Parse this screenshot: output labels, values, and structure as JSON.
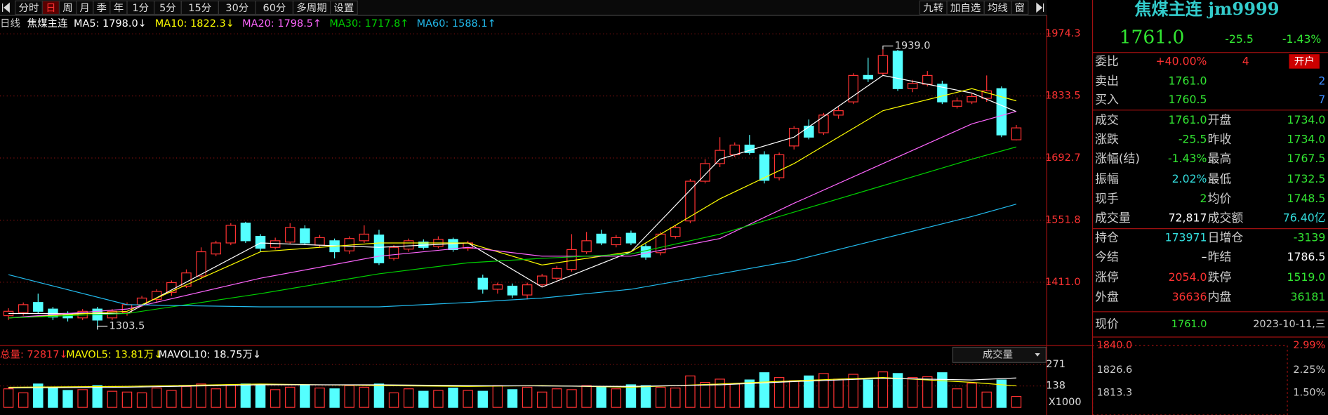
{
  "toolbar": {
    "left": [
      "分时",
      "日",
      "周",
      "月",
      "季",
      "年",
      "1分",
      "5分",
      "15分",
      "30分",
      "60分",
      "多周期",
      "设置"
    ],
    "right": [
      "九转",
      "加自选",
      "均线",
      "窗"
    ]
  },
  "chart_data": [
    {
      "type": "candlestick",
      "period_label": "日线",
      "name": "焦煤主连",
      "open": [
        1335,
        1342,
        1365,
        1350,
        1340,
        1330,
        1350,
        1330,
        1342,
        1360,
        1372,
        1388,
        1402,
        1425,
        1475,
        1500,
        1545,
        1515,
        1490,
        1502,
        1532,
        1495,
        1505,
        1482,
        1505,
        1518,
        1465,
        1486,
        1502,
        1492,
        1508,
        1488,
        1420,
        1395,
        1402,
        1382,
        1405,
        1420,
        1440,
        1480,
        1520,
        1496,
        1522,
        1492,
        1478,
        1515,
        1550,
        1640,
        1680,
        1700,
        1722,
        1700,
        1648,
        1720,
        1765,
        1750,
        1790,
        1820,
        1880,
        1885,
        1935,
        1850,
        1860,
        1860,
        1810,
        1820,
        1828,
        1850,
        1734
      ],
      "close": [
        1345,
        1360,
        1345,
        1332,
        1330,
        1345,
        1325,
        1345,
        1360,
        1375,
        1390,
        1410,
        1432,
        1480,
        1500,
        1540,
        1505,
        1488,
        1505,
        1535,
        1500,
        1512,
        1480,
        1510,
        1520,
        1455,
        1490,
        1505,
        1490,
        1508,
        1485,
        1500,
        1395,
        1405,
        1382,
        1405,
        1425,
        1442,
        1485,
        1505,
        1500,
        1512,
        1500,
        1468,
        1520,
        1535,
        1640,
        1680,
        1710,
        1722,
        1705,
        1642,
        1700,
        1760,
        1740,
        1790,
        1800,
        1880,
        1872,
        1925,
        1850,
        1862,
        1880,
        1820,
        1822,
        1832,
        1845,
        1745,
        1761
      ],
      "high": [
        1352,
        1365,
        1385,
        1355,
        1345,
        1350,
        1355,
        1350,
        1365,
        1380,
        1395,
        1415,
        1440,
        1490,
        1505,
        1545,
        1548,
        1520,
        1512,
        1545,
        1540,
        1518,
        1510,
        1515,
        1540,
        1530,
        1495,
        1510,
        1508,
        1515,
        1512,
        1505,
        1428,
        1410,
        1408,
        1410,
        1430,
        1448,
        1520,
        1525,
        1530,
        1518,
        1528,
        1498,
        1525,
        1540,
        1645,
        1690,
        1740,
        1728,
        1745,
        1708,
        1705,
        1765,
        1780,
        1795,
        1808,
        1885,
        1920,
        1939,
        1938,
        1870,
        1890,
        1868,
        1830,
        1840,
        1880,
        1855,
        1767.5
      ],
      "low": [
        1325,
        1335,
        1340,
        1325,
        1322,
        1325,
        1303.5,
        1325,
        1335,
        1355,
        1365,
        1380,
        1398,
        1418,
        1470,
        1495,
        1500,
        1480,
        1485,
        1498,
        1495,
        1490,
        1465,
        1475,
        1500,
        1450,
        1460,
        1480,
        1485,
        1488,
        1480,
        1482,
        1385,
        1385,
        1375,
        1372,
        1400,
        1415,
        1435,
        1475,
        1495,
        1490,
        1495,
        1462,
        1472,
        1510,
        1545,
        1635,
        1672,
        1695,
        1700,
        1635,
        1642,
        1712,
        1735,
        1745,
        1782,
        1815,
        1865,
        1880,
        1845,
        1842,
        1855,
        1815,
        1805,
        1815,
        1820,
        1740,
        1732.5
      ],
      "up_color": "#ff3232",
      "down_color": "#54ffff",
      "ylim": [
        1269.2,
        2008.8
      ],
      "yticks": [
        1974.3,
        1833.5,
        1692.7,
        1551.8,
        {
          "value": 1411,
          "label": "1411.0"
        }
      ],
      "grid": true,
      "series": [
        {
          "name": "MA5",
          "legend_label": "MA5: 1798.0↓",
          "color": "#ffffff",
          "x": [
            0,
            8,
            17,
            25,
            31,
            36,
            42,
            48,
            53,
            59,
            65,
            68
          ],
          "values": [
            1340,
            1340,
            1500,
            1490,
            1500,
            1400,
            1480,
            1690,
            1740,
            1880,
            1840,
            1798
          ]
        },
        {
          "name": "MA10",
          "legend_label": "MA10: 1822.3↓",
          "color": "#ffff00",
          "x": [
            0,
            8,
            17,
            25,
            31,
            36,
            42,
            48,
            53,
            59,
            65,
            68
          ],
          "values": [
            1330,
            1345,
            1480,
            1500,
            1500,
            1450,
            1480,
            1600,
            1680,
            1800,
            1850,
            1822.3
          ]
        },
        {
          "name": "MA20",
          "legend_label": "MA20: 1798.5↑",
          "color": "#ff66ff",
          "x": [
            0,
            8,
            17,
            25,
            31,
            36,
            42,
            48,
            53,
            59,
            65,
            68
          ],
          "values": [
            1330,
            1350,
            1420,
            1470,
            1490,
            1470,
            1470,
            1510,
            1590,
            1680,
            1770,
            1798.5
          ]
        },
        {
          "name": "MA30",
          "legend_label": "MA30: 1717.8↑",
          "color": "#00d000",
          "x": [
            0,
            8,
            17,
            25,
            31,
            36,
            42,
            48,
            53,
            59,
            65,
            68
          ],
          "values": [
            1330,
            1340,
            1385,
            1430,
            1455,
            1465,
            1475,
            1520,
            1570,
            1630,
            1690,
            1717.8
          ]
        },
        {
          "name": "MA60",
          "legend_label": "MA60: 1588.1↑",
          "color": "#22bbee",
          "x": [
            0,
            8,
            17,
            25,
            31,
            36,
            42,
            48,
            53,
            59,
            65,
            68
          ],
          "values": [
            1428,
            1360,
            1355,
            1355,
            1365,
            1375,
            1395,
            1430,
            1460,
            1510,
            1560,
            1588.1
          ]
        }
      ],
      "annotations": [
        {
          "label": "1939.0",
          "value": 1939,
          "x": 59
        },
        {
          "label": "1303.5",
          "value": 1303.5,
          "x": 6
        }
      ]
    },
    {
      "type": "bar",
      "title": "成交量",
      "total_label": "总量: 72817↓",
      "unit_label": "X1000",
      "values": [
        120,
        95,
        150,
        130,
        110,
        115,
        140,
        105,
        100,
        95,
        125,
        110,
        135,
        150,
        120,
        145,
        150,
        140,
        115,
        130,
        145,
        125,
        120,
        140,
        130,
        150,
        95,
        120,
        105,
        110,
        125,
        110,
        105,
        140,
        115,
        130,
        100,
        120,
        115,
        140,
        135,
        120,
        145,
        140,
        130,
        125,
        200,
        160,
        180,
        150,
        175,
        220,
        190,
        170,
        200,
        215,
        180,
        210,
        175,
        225,
        215,
        190,
        195,
        220,
        120,
        155,
        100,
        175,
        72.817
      ],
      "ylim": [
        5,
        383
      ],
      "yticks": [
        138,
        271
      ],
      "series": [
        {
          "name": "MAVOL5",
          "legend_label": "MAVOL5: 13.81万↓",
          "color": "#ffff00",
          "x": [
            0,
            8,
            17,
            25,
            31,
            36,
            42,
            48,
            53,
            59,
            65,
            68
          ],
          "values": [
            130,
            135,
            150,
            140,
            135,
            140,
            130,
            150,
            170,
            190,
            160,
            138.1
          ]
        },
        {
          "name": "MAVOL10",
          "legend_label": "MAVOL10: 18.75万↓",
          "color": "#ffffff",
          "x": [
            0,
            8,
            17,
            25,
            31,
            36,
            42,
            48,
            53,
            59,
            65,
            68
          ],
          "values": [
            125,
            130,
            145,
            145,
            140,
            138,
            135,
            145,
            165,
            185,
            175,
            187.5
          ]
        }
      ]
    }
  ],
  "quote": {
    "title": "焦煤主连 jm9999",
    "price": "1761.0",
    "change": "-25.5",
    "change_pct": "-1.43%",
    "button": "开户",
    "rows": [
      [
        "委比",
        "+40.00%",
        "4"
      ],
      [
        "卖出",
        "1761.0",
        "2"
      ],
      [
        "买入",
        "1760.5",
        "7"
      ],
      [
        "成交",
        "1761.0",
        "开盘",
        "1734.0"
      ],
      [
        "涨跌",
        "-25.5",
        "昨收",
        "1734.0"
      ],
      [
        "涨幅(结)",
        "-1.43%",
        "最高",
        "1767.5"
      ],
      [
        "振幅",
        "2.02%",
        "最低",
        "1732.5"
      ],
      [
        "现手",
        "2",
        "均价",
        "1748.5"
      ],
      [
        "成交量",
        "72,817",
        "成交额",
        "76.40亿"
      ],
      [
        "持仓",
        "173971",
        "日增仓",
        "-3139"
      ],
      [
        "今结",
        "–",
        "昨结",
        "1786.5"
      ],
      [
        "涨停",
        "2054.0",
        "跌停",
        "1519.0"
      ],
      [
        "外盘",
        "36636",
        "内盘",
        "36181"
      ]
    ],
    "now": [
      "现价",
      "1761.0",
      "2023-10-11,三"
    ],
    "mini_left": [
      "1840.0",
      "1826.6",
      "1813.3"
    ],
    "mini_right": [
      "2.99%",
      "2.25%",
      "1.50%"
    ]
  }
}
